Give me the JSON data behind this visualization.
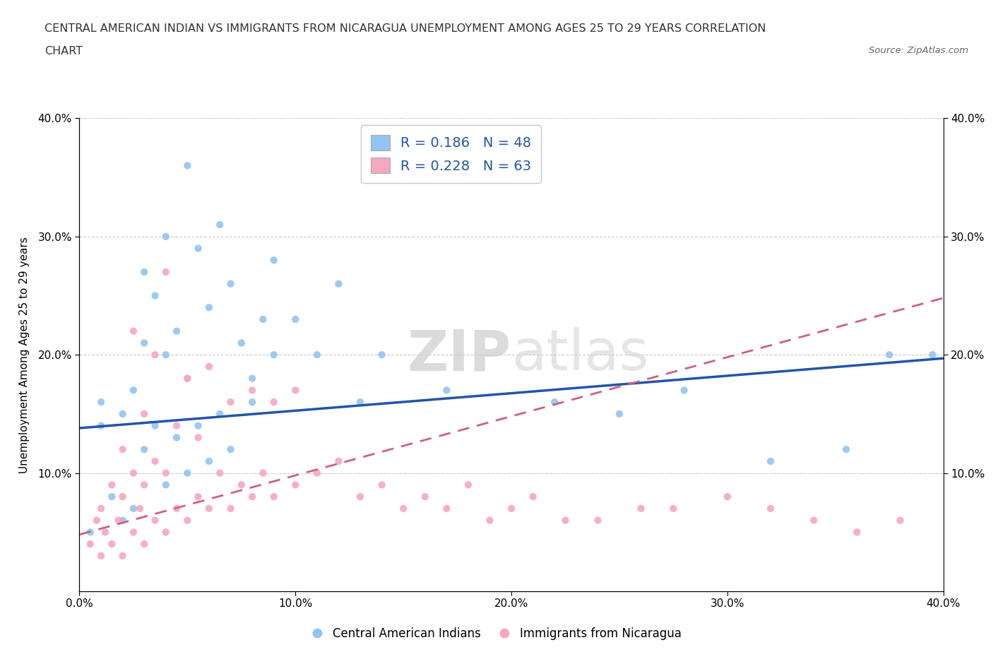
{
  "title_line1": "CENTRAL AMERICAN INDIAN VS IMMIGRANTS FROM NICARAGUA UNEMPLOYMENT AMONG AGES 25 TO 29 YEARS CORRELATION",
  "title_line2": "CHART",
  "source_text": "Source: ZipAtlas.com",
  "ylabel": "Unemployment Among Ages 25 to 29 years",
  "xlim": [
    0.0,
    0.4
  ],
  "ylim": [
    0.0,
    0.4
  ],
  "xticks": [
    0.0,
    0.1,
    0.2,
    0.3,
    0.4
  ],
  "yticks": [
    0.1,
    0.2,
    0.3,
    0.4
  ],
  "xticklabels": [
    "0.0%",
    "10.0%",
    "20.0%",
    "30.0%",
    "40.0%"
  ],
  "yticklabels": [
    "10.0%",
    "20.0%",
    "30.0%",
    "40.0%"
  ],
  "blue_R": 0.186,
  "blue_N": 48,
  "pink_R": 0.228,
  "pink_N": 63,
  "blue_color": "#92c5f0",
  "pink_color": "#f5a8be",
  "blue_line_color": "#2255aa",
  "pink_line_color": "#d06080",
  "watermark_zip": "ZIP",
  "watermark_atlas": "atlas",
  "legend_label_blue": "Central American Indians",
  "legend_label_pink": "Immigrants from Nicaragua",
  "blue_line_x0": 0.0,
  "blue_line_y0": 0.138,
  "blue_line_x1": 0.4,
  "blue_line_y1": 0.197,
  "pink_line_x0": 0.0,
  "pink_line_y0": 0.048,
  "pink_line_x1": 0.4,
  "pink_line_y1": 0.248,
  "blue_scatter_x": [
    0.005,
    0.01,
    0.01,
    0.015,
    0.02,
    0.02,
    0.025,
    0.025,
    0.03,
    0.03,
    0.03,
    0.035,
    0.035,
    0.04,
    0.04,
    0.04,
    0.045,
    0.045,
    0.05,
    0.05,
    0.05,
    0.055,
    0.055,
    0.06,
    0.06,
    0.065,
    0.065,
    0.07,
    0.07,
    0.075,
    0.08,
    0.08,
    0.085,
    0.09,
    0.09,
    0.1,
    0.11,
    0.12,
    0.13,
    0.14,
    0.17,
    0.22,
    0.25,
    0.28,
    0.32,
    0.355,
    0.375,
    0.395
  ],
  "blue_scatter_y": [
    0.05,
    0.14,
    0.16,
    0.08,
    0.06,
    0.15,
    0.07,
    0.17,
    0.12,
    0.21,
    0.27,
    0.14,
    0.25,
    0.09,
    0.2,
    0.3,
    0.13,
    0.22,
    0.1,
    0.18,
    0.36,
    0.14,
    0.29,
    0.11,
    0.24,
    0.15,
    0.31,
    0.12,
    0.26,
    0.21,
    0.18,
    0.16,
    0.23,
    0.2,
    0.28,
    0.23,
    0.2,
    0.26,
    0.16,
    0.2,
    0.17,
    0.16,
    0.15,
    0.17,
    0.11,
    0.12,
    0.2,
    0.2
  ],
  "pink_scatter_x": [
    0.005,
    0.008,
    0.01,
    0.01,
    0.012,
    0.015,
    0.015,
    0.018,
    0.02,
    0.02,
    0.02,
    0.025,
    0.025,
    0.025,
    0.028,
    0.03,
    0.03,
    0.03,
    0.035,
    0.035,
    0.035,
    0.04,
    0.04,
    0.04,
    0.045,
    0.045,
    0.05,
    0.05,
    0.055,
    0.055,
    0.06,
    0.06,
    0.065,
    0.07,
    0.07,
    0.075,
    0.08,
    0.08,
    0.085,
    0.09,
    0.09,
    0.1,
    0.1,
    0.11,
    0.12,
    0.13,
    0.14,
    0.15,
    0.16,
    0.17,
    0.18,
    0.19,
    0.2,
    0.21,
    0.225,
    0.24,
    0.26,
    0.275,
    0.3,
    0.32,
    0.34,
    0.36,
    0.38
  ],
  "pink_scatter_y": [
    0.04,
    0.06,
    0.03,
    0.07,
    0.05,
    0.04,
    0.09,
    0.06,
    0.03,
    0.08,
    0.12,
    0.05,
    0.1,
    0.22,
    0.07,
    0.04,
    0.09,
    0.15,
    0.06,
    0.11,
    0.2,
    0.05,
    0.1,
    0.27,
    0.07,
    0.14,
    0.06,
    0.18,
    0.08,
    0.13,
    0.07,
    0.19,
    0.1,
    0.07,
    0.16,
    0.09,
    0.08,
    0.17,
    0.1,
    0.08,
    0.16,
    0.09,
    0.17,
    0.1,
    0.11,
    0.08,
    0.09,
    0.07,
    0.08,
    0.07,
    0.09,
    0.06,
    0.07,
    0.08,
    0.06,
    0.06,
    0.07,
    0.07,
    0.08,
    0.07,
    0.06,
    0.05,
    0.06
  ]
}
